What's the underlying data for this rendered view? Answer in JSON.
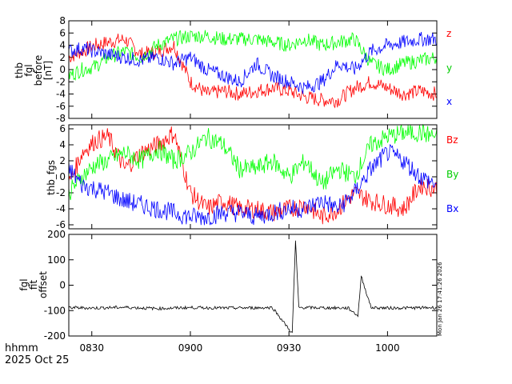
{
  "footer": {
    "time_label": "hhmm",
    "date_label": "2025 Oct 25"
  },
  "stamp": "Mon Jan 26 17:41:26 2026",
  "x_ticks": [
    "0830",
    "0900",
    "0930",
    "1000"
  ],
  "chart_data": [
    {
      "type": "line",
      "ylabel_lines": [
        "thb",
        "fgl",
        "before",
        "[nT]"
      ],
      "xlim": [
        "08:23",
        "10:15"
      ],
      "ylim": [
        -8,
        8
      ],
      "y_ticks": [
        -8,
        -6,
        -4,
        -2,
        0,
        2,
        4,
        6,
        8
      ],
      "series": [
        {
          "name": "z",
          "color": "#ff0000",
          "x": [
            "08:23",
            "08:27",
            "08:31",
            "08:35",
            "08:40",
            "08:45",
            "08:50",
            "08:55",
            "09:00",
            "09:05",
            "09:10",
            "09:15",
            "09:20",
            "09:25",
            "09:30",
            "09:35",
            "09:40",
            "09:45",
            "09:50",
            "09:55",
            "10:00",
            "10:05",
            "10:10",
            "10:15"
          ],
          "values": [
            2,
            3,
            4,
            4.5,
            5,
            2.5,
            3,
            4,
            -2,
            -4,
            -3.5,
            -4,
            -3.5,
            -3,
            -3.5,
            -4.5,
            -5,
            -5,
            -3,
            -2,
            -3,
            -4,
            -3.5,
            -4
          ]
        },
        {
          "name": "y",
          "color": "#00ff00",
          "x": [
            "08:23",
            "08:27",
            "08:31",
            "08:35",
            "08:40",
            "08:45",
            "08:50",
            "08:55",
            "09:00",
            "09:05",
            "09:10",
            "09:15",
            "09:20",
            "09:25",
            "09:30",
            "09:35",
            "09:40",
            "09:45",
            "09:50",
            "09:55",
            "10:00",
            "10:05",
            "10:10",
            "10:15"
          ],
          "values": [
            -1,
            0,
            0.5,
            2,
            3,
            2,
            4,
            5,
            5.5,
            5.5,
            5,
            5,
            5,
            4.5,
            4,
            5,
            4,
            4.5,
            5,
            1,
            0,
            1,
            1.5,
            2
          ]
        },
        {
          "name": "x",
          "color": "#0000ff",
          "x": [
            "08:23",
            "08:27",
            "08:31",
            "08:35",
            "08:40",
            "08:45",
            "08:50",
            "08:55",
            "09:00",
            "09:05",
            "09:10",
            "09:15",
            "09:20",
            "09:25",
            "09:30",
            "09:35",
            "09:40",
            "09:45",
            "09:50",
            "09:55",
            "10:00",
            "10:05",
            "10:10",
            "10:15"
          ],
          "values": [
            3,
            3.5,
            3,
            2.5,
            2,
            1.5,
            2,
            1,
            2,
            0,
            -1,
            -2,
            1,
            -1,
            -2,
            -3,
            -2,
            1,
            0,
            3,
            4,
            4.5,
            5,
            5
          ]
        }
      ]
    },
    {
      "type": "line",
      "ylabel_lines": [
        "thb_fgs"
      ],
      "xlim": [
        "08:23",
        "10:15"
      ],
      "ylim": [
        -6.5,
        6.5
      ],
      "y_ticks": [
        -6,
        -4,
        -2,
        0,
        2,
        4,
        6
      ],
      "series": [
        {
          "name": "Bz",
          "color": "#ff0000",
          "x": [
            "08:23",
            "08:27",
            "08:31",
            "08:35",
            "08:40",
            "08:45",
            "08:50",
            "08:55",
            "09:00",
            "09:05",
            "09:10",
            "09:15",
            "09:20",
            "09:25",
            "09:30",
            "09:35",
            "09:40",
            "09:45",
            "09:50",
            "09:55",
            "10:00",
            "10:05",
            "10:10",
            "10:15"
          ],
          "values": [
            -1,
            3,
            4.5,
            5,
            1,
            3,
            4,
            5.5,
            -2,
            -4,
            -3,
            -4,
            -4,
            -4.5,
            -4,
            -3.5,
            -5,
            -4,
            -2,
            -3,
            -3.5,
            -4,
            -1,
            -1.5
          ]
        },
        {
          "name": "By",
          "color": "#00ff00",
          "x": [
            "08:23",
            "08:27",
            "08:31",
            "08:35",
            "08:40",
            "08:45",
            "08:50",
            "08:55",
            "09:00",
            "09:05",
            "09:10",
            "09:15",
            "09:20",
            "09:25",
            "09:30",
            "09:35",
            "09:40",
            "09:45",
            "09:50",
            "09:55",
            "10:00",
            "10:05",
            "10:10",
            "10:15"
          ],
          "values": [
            -2,
            0,
            1.5,
            2,
            3,
            2,
            3.5,
            2,
            3,
            5,
            4,
            1,
            1,
            2,
            0,
            2,
            -1,
            1,
            0,
            4,
            5,
            5.5,
            5.5,
            5
          ]
        },
        {
          "name": "Bx",
          "color": "#0000ff",
          "x": [
            "08:23",
            "08:27",
            "08:31",
            "08:35",
            "08:40",
            "08:45",
            "08:50",
            "08:55",
            "09:00",
            "09:05",
            "09:10",
            "09:15",
            "09:20",
            "09:25",
            "09:30",
            "09:35",
            "09:40",
            "09:45",
            "09:50",
            "09:55",
            "10:00",
            "10:05",
            "10:10",
            "10:15"
          ],
          "values": [
            1,
            -1,
            -1.5,
            -2,
            -3,
            -3.5,
            -4,
            -4.5,
            -5,
            -5,
            -4.5,
            -4.5,
            -5,
            -4.5,
            -4,
            -4,
            -3,
            -4,
            -2,
            1,
            3,
            2,
            0,
            -1
          ]
        }
      ]
    },
    {
      "type": "line",
      "ylabel_lines": [
        "fgl",
        "fit",
        "offset"
      ],
      "xlim": [
        "08:23",
        "10:15"
      ],
      "ylim": [
        -200,
        200
      ],
      "y_ticks": [
        -200,
        -100,
        0,
        100,
        200
      ],
      "series": [
        {
          "color": "#000000",
          "x": [
            "08:23",
            "08:30",
            "08:40",
            "08:50",
            "09:00",
            "09:10",
            "09:20",
            "09:25",
            "09:31",
            "09:32",
            "09:33",
            "09:40",
            "09:48",
            "09:51",
            "09:52",
            "09:55",
            "10:00",
            "10:10",
            "10:15"
          ],
          "values": [
            -88,
            -90,
            -87,
            -92,
            -88,
            -90,
            -89,
            -88,
            -190,
            175,
            -88,
            -89,
            -90,
            -120,
            35,
            -88,
            -90,
            -89,
            -88
          ]
        }
      ]
    }
  ]
}
